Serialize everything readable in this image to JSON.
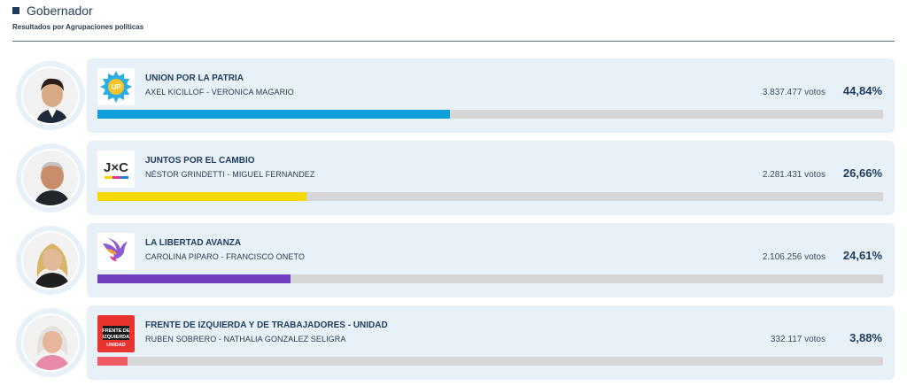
{
  "header": {
    "title": "Gobernador",
    "subtitle": "Resultados por Agrupaciones políticas"
  },
  "results": [
    {
      "party": "UNION POR LA PATRIA",
      "candidates": "AXEL KICILLOF  -  VERONICA MAGARIO",
      "votes": "3.837.477 votos",
      "percent": "44,84%",
      "share": 0.4484,
      "color": "#0fa0dc",
      "logo_icon": "union-por-la-patria-logo",
      "logo_text": "UP"
    },
    {
      "party": "JUNTOS POR EL CAMBIO",
      "candidates": "NÉSTOR GRINDETTI  -  MIGUEL FERNANDEZ",
      "votes": "2.281.431 votos",
      "percent": "26,66%",
      "share": 0.2666,
      "color": "#f5d800",
      "logo_icon": "juntos-por-el-cambio-logo",
      "logo_text": "J×C"
    },
    {
      "party": "LA LIBERTAD AVANZA",
      "candidates": "CAROLINA PIPARO  -  FRANCISCO ONETO",
      "votes": "2.106.256 votos",
      "percent": "24,61%",
      "share": 0.2461,
      "color": "#6f3fbf",
      "logo_icon": "la-libertad-avanza-logo"
    },
    {
      "party": "FRENTE DE IZQUIERDA Y DE TRABAJADORES - UNIDAD",
      "candidates": "RUBEN SOBRERO  -  NATHALIA GONZALEZ SELIGRA",
      "votes": "332.117 votos",
      "percent": "3,88%",
      "share": 0.0388,
      "color": "#f05a63",
      "logo_icon": "frente-de-izquierda-logo",
      "logo_lines": [
        "FRENTE DE",
        "IZQUIERDA",
        "UNIDAD"
      ]
    }
  ]
}
